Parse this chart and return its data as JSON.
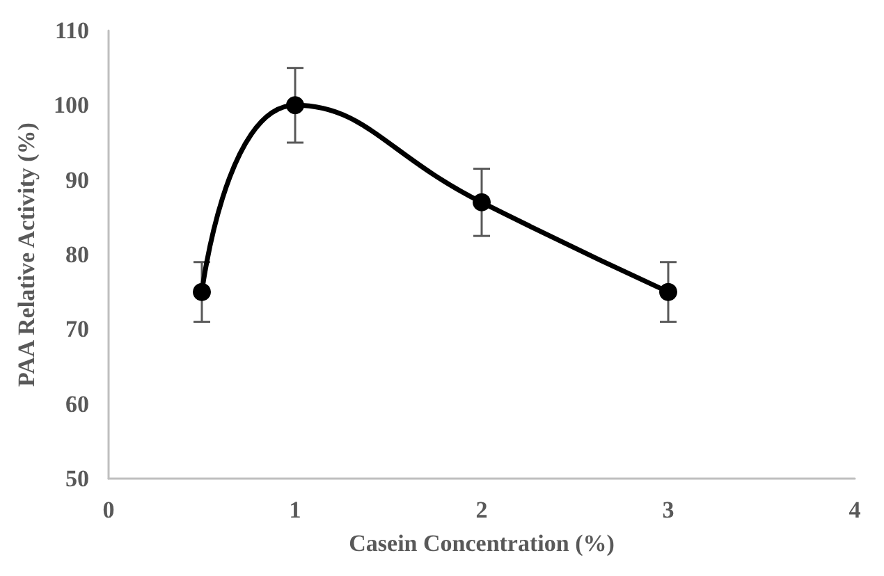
{
  "chart_data": {
    "type": "line",
    "xlabel": "Casein Concentration (%)",
    "ylabel": "PAA Relative Activity (%)",
    "x": [
      0.5,
      1,
      2,
      3
    ],
    "series": [
      {
        "color": "#000000",
        "values": [
          75,
          100,
          87,
          75
        ],
        "errors": [
          4,
          5,
          4.5,
          4
        ]
      }
    ],
    "xlim": [
      0,
      4
    ],
    "xticks": [
      0,
      1,
      2,
      3,
      4
    ],
    "ylim": [
      50,
      110
    ],
    "yticks": [
      50,
      60,
      70,
      80,
      90,
      100,
      110
    ],
    "grid": false,
    "marker": "circle",
    "line_style": "solid"
  }
}
